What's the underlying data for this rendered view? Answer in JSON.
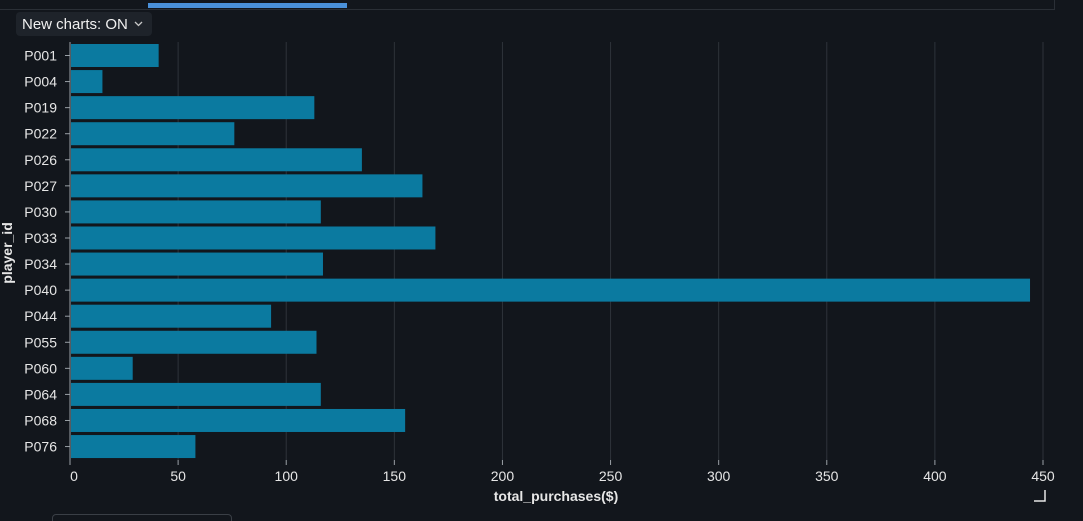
{
  "toolbar": {
    "charts_toggle_label": "New charts: ON",
    "chevron_icon": "chevron-down-icon"
  },
  "colors": {
    "background": "#12161c",
    "bar": "#0b7aa0",
    "grid": "#2e333a",
    "text": "#e6e6e6",
    "tab_accent": "#4a90d9"
  },
  "chart_data": {
    "type": "bar",
    "orientation": "horizontal",
    "xlabel": "total_purchases($)",
    "ylabel": "player_id",
    "xlim": [
      0,
      450
    ],
    "xticks": [
      0,
      50,
      100,
      150,
      200,
      250,
      300,
      350,
      400,
      450
    ],
    "grid": true,
    "categories": [
      "P001",
      "P004",
      "P019",
      "P022",
      "P026",
      "P027",
      "P030",
      "P033",
      "P034",
      "P040",
      "P044",
      "P055",
      "P060",
      "P064",
      "P068",
      "P076"
    ],
    "values": [
      41,
      15,
      113,
      76,
      135,
      163,
      116,
      169,
      117,
      444,
      93,
      114,
      29,
      116,
      155,
      58
    ]
  }
}
